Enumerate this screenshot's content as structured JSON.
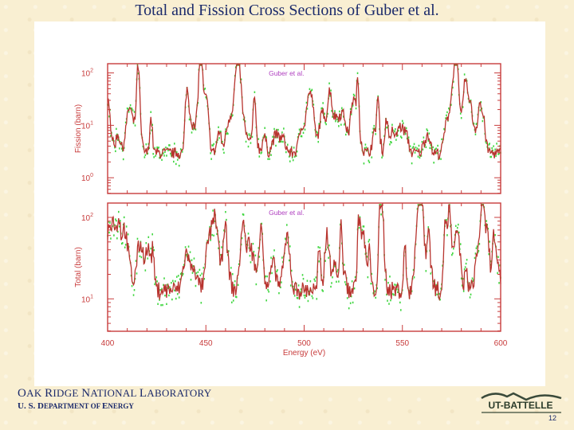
{
  "slide": {
    "title": "Total and Fission Cross Sections of Guber et al.",
    "footer_org_parts": [
      "O",
      "AK ",
      "R",
      "IDGE ",
      "N",
      "ATIONAL ",
      "L",
      "ABORATORY"
    ],
    "footer_dept_parts": [
      "U. S. D",
      "EPARTMENT OF ",
      "E",
      "NERGY"
    ],
    "logo_text": "UT-BATTELLE",
    "page_number": "12"
  },
  "colors": {
    "frame": "#c83c3c",
    "series_green": "#3fd63f",
    "series_red": "#b8342f",
    "label_purple": "#b040c0",
    "axis_text": "#c83c3c",
    "text_blue": "#1b2a6b"
  },
  "chart_data": [
    {
      "type": "line",
      "panel": "top",
      "annotation": "Guber et al.",
      "ylabel": "Fission (barn)",
      "yscale": "log",
      "ylim": [
        0.5,
        150
      ],
      "yticks": [
        1,
        10,
        100
      ],
      "ytick_labels": [
        "10^0",
        "10^1",
        "10^2"
      ],
      "xlim": [
        400,
        600
      ],
      "xticks": [
        400,
        450,
        500,
        550,
        600
      ],
      "xtick_labels": [
        "",
        "",
        "",
        "",
        ""
      ],
      "xlabel": "",
      "series": [
        {
          "name": "data (green)",
          "color": "#3fd63f",
          "style": "points",
          "x": [],
          "y": []
        },
        {
          "name": "fit (red)",
          "color": "#b8342f",
          "style": "line",
          "x": [],
          "y": []
        }
      ]
    },
    {
      "type": "line",
      "panel": "bottom",
      "annotation": "Guber et al.",
      "ylabel": "Total (barn)",
      "yscale": "log",
      "ylim": [
        4,
        150
      ],
      "yticks": [
        10,
        100
      ],
      "ytick_labels": [
        "10^1",
        "10^2"
      ],
      "xlim": [
        400,
        600
      ],
      "xticks": [
        400,
        450,
        500,
        550,
        600
      ],
      "xtick_labels": [
        "400",
        "450",
        "500",
        "550",
        "600"
      ],
      "xlabel": "Energy (eV)",
      "series": [
        {
          "name": "data (green)",
          "color": "#3fd63f",
          "style": "points",
          "x": [],
          "y": []
        },
        {
          "name": "fit (red)",
          "color": "#b8342f",
          "style": "line",
          "x": [],
          "y": []
        }
      ]
    }
  ]
}
